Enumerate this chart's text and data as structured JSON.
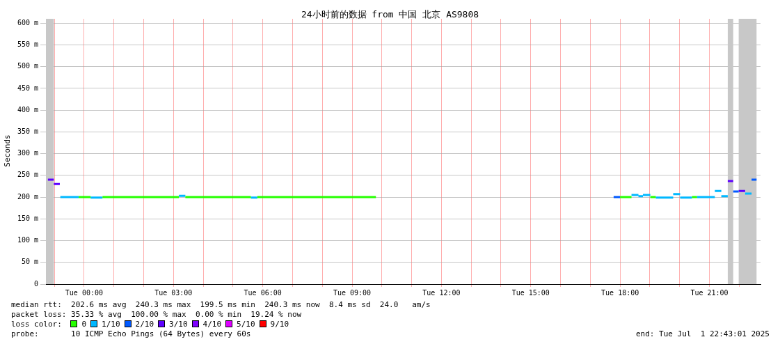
{
  "chart_data": {
    "type": "line",
    "title": "24小时前的数据 from 中国 北京 AS9808",
    "ylabel": "Seconds",
    "legend_title": "loss color:",
    "legend": "bottom",
    "grid": true,
    "line_style": "solid",
    "marker": "none",
    "xlim": [
      "2025-06-30T22:43",
      "2025-07-01T22:43"
    ],
    "xticks": [
      {
        "value": "2025-06-30T23:00",
        "label": null
      },
      {
        "value": "2025-07-01T00:00",
        "label": "Tue 00:00"
      },
      {
        "value": "2025-07-01T01:00",
        "label": null
      },
      {
        "value": "2025-07-01T02:00",
        "label": null
      },
      {
        "value": "2025-07-01T03:00",
        "label": "Tue 03:00"
      },
      {
        "value": "2025-07-01T04:00",
        "label": null
      },
      {
        "value": "2025-07-01T05:00",
        "label": null
      },
      {
        "value": "2025-07-01T06:00",
        "label": "Tue 06:00"
      },
      {
        "value": "2025-07-01T07:00",
        "label": null
      },
      {
        "value": "2025-07-01T08:00",
        "label": null
      },
      {
        "value": "2025-07-01T09:00",
        "label": "Tue 09:00"
      },
      {
        "value": "2025-07-01T10:00",
        "label": null
      },
      {
        "value": "2025-07-01T11:00",
        "label": null
      },
      {
        "value": "2025-07-01T12:00",
        "label": "Tue 12:00"
      },
      {
        "value": "2025-07-01T13:00",
        "label": null
      },
      {
        "value": "2025-07-01T14:00",
        "label": null
      },
      {
        "value": "2025-07-01T15:00",
        "label": "Tue 15:00"
      },
      {
        "value": "2025-07-01T16:00",
        "label": null
      },
      {
        "value": "2025-07-01T17:00",
        "label": null
      },
      {
        "value": "2025-07-01T18:00",
        "label": "Tue 18:00"
      },
      {
        "value": "2025-07-01T19:00",
        "label": null
      },
      {
        "value": "2025-07-01T20:00",
        "label": null
      },
      {
        "value": "2025-07-01T21:00",
        "label": "Tue 21:00"
      },
      {
        "value": "2025-07-01T22:00",
        "label": null
      }
    ],
    "ylim": [
      0,
      610
    ],
    "yticks": [
      0,
      {
        "value": 50,
        "label": "50 m"
      },
      {
        "value": 100,
        "label": "100 m"
      },
      {
        "value": 150,
        "label": "150 m"
      },
      {
        "value": 200,
        "label": "200 m"
      },
      {
        "value": 250,
        "label": "250 m"
      },
      {
        "value": 300,
        "label": "300 m"
      },
      {
        "value": 350,
        "label": "350 m"
      },
      {
        "value": 400,
        "label": "400 m"
      },
      {
        "value": 450,
        "label": "450 m"
      },
      {
        "value": 500,
        "label": "500 m"
      },
      {
        "value": 550,
        "label": "550 m"
      },
      {
        "value": 600,
        "label": "600 m"
      }
    ],
    "bands": [
      {
        "axis": "x",
        "from": "2025-06-30T22:43",
        "to": "2025-06-30T22:59",
        "color": "#c8c8c8"
      },
      {
        "axis": "x",
        "from": "2025-07-01T21:37",
        "to": "2025-07-01T21:48",
        "color": "#c8c8c8"
      },
      {
        "axis": "x",
        "from": "2025-07-01T21:59",
        "to": "2025-07-01T22:35",
        "color": "#c8c8c8"
      }
    ],
    "series": [
      {
        "name": "0",
        "color": "#26ff00",
        "x": [
          "2025-06-30T23:49",
          "2025-07-01T00:13",
          null,
          "2025-07-01T00:37",
          "2025-07-01T03:11",
          null,
          "2025-07-01T03:24",
          "2025-07-01T05:36",
          null,
          "2025-07-01T05:49",
          "2025-07-01T09:48",
          null,
          "2025-07-01T18:00",
          "2025-07-01T18:23",
          null,
          "2025-07-01T19:01",
          "2025-07-01T19:12",
          null,
          "2025-07-01T20:25",
          "2025-07-01T20:35"
        ],
        "values": [
          200,
          200,
          null,
          200,
          200,
          null,
          200,
          200,
          null,
          200,
          200,
          null,
          200,
          200,
          null,
          200,
          200,
          null,
          200,
          200
        ]
      },
      {
        "name": "1/10",
        "color": "#00b8ff",
        "x": [
          "2025-06-30T23:12",
          "2025-06-30T23:49",
          null,
          "2025-07-01T00:13",
          "2025-07-01T00:37",
          null,
          "2025-07-01T03:11",
          "2025-07-01T03:24",
          null,
          "2025-07-01T05:36",
          "2025-07-01T05:49",
          null,
          "2025-07-01T18:23",
          "2025-07-01T18:37",
          null,
          "2025-07-01T18:37",
          "2025-07-01T18:46",
          null,
          "2025-07-01T18:46",
          "2025-07-01T19:01",
          null,
          "2025-07-01T19:12",
          "2025-07-01T19:47",
          null,
          "2025-07-01T19:47",
          "2025-07-01T20:01",
          null,
          "2025-07-01T20:01",
          "2025-07-01T20:25",
          null,
          "2025-07-01T20:35",
          "2025-07-01T21:11",
          null,
          "2025-07-01T21:11",
          "2025-07-01T21:24",
          null,
          "2025-07-01T21:24",
          "2025-07-01T21:37",
          null,
          "2025-07-01T22:12",
          "2025-07-01T22:25"
        ],
        "values": [
          200,
          200,
          null,
          199,
          199,
          null,
          203,
          203,
          null,
          199,
          199,
          null,
          205,
          205,
          null,
          202,
          202,
          null,
          205,
          205,
          null,
          199,
          199,
          null,
          207,
          207,
          null,
          199,
          199,
          null,
          200,
          200,
          null,
          214,
          214,
          null,
          202,
          202,
          null,
          208,
          208
        ]
      },
      {
        "name": "2/10",
        "color": "#0059ff",
        "x": [
          "2025-07-01T17:47",
          "2025-07-01T18:00",
          null,
          "2025-07-01T21:48",
          "2025-07-01T21:59",
          null,
          "2025-07-01T22:25",
          "2025-07-01T22:35"
        ],
        "values": [
          200,
          200,
          null,
          213,
          213,
          null,
          240,
          240
        ]
      },
      {
        "name": "3/10",
        "color": "#5e00ff",
        "x": [
          "2025-06-30T22:47",
          "2025-06-30T22:59",
          null,
          "2025-06-30T22:59",
          "2025-06-30T23:11",
          null,
          "2025-07-01T21:37",
          "2025-07-01T21:48",
          null,
          "2025-07-01T21:59",
          "2025-07-01T22:12"
        ],
        "values": [
          240,
          240,
          null,
          230,
          230,
          null,
          237,
          237,
          null,
          214,
          214
        ]
      },
      {
        "name": "4/10",
        "color": "#7e00ff"
      },
      {
        "name": "5/10",
        "color": "#dd00ff"
      },
      {
        "name": "9/10",
        "color": "#ff0000"
      }
    ],
    "annotations": [
      "median rtt:  202.6 ms avg  240.3 ms max  199.5 ms min  240.3 ms now  8.4 ms sd  24.0   am/s",
      "packet loss: 35.33 % avg  100.00 % max  0.00 % min  19.24 % now",
      "probe:       10 ICMP Echo Pings (64 Bytes) every 60s",
      "end: Tue Jul  1 22:43:01 2025"
    ]
  }
}
